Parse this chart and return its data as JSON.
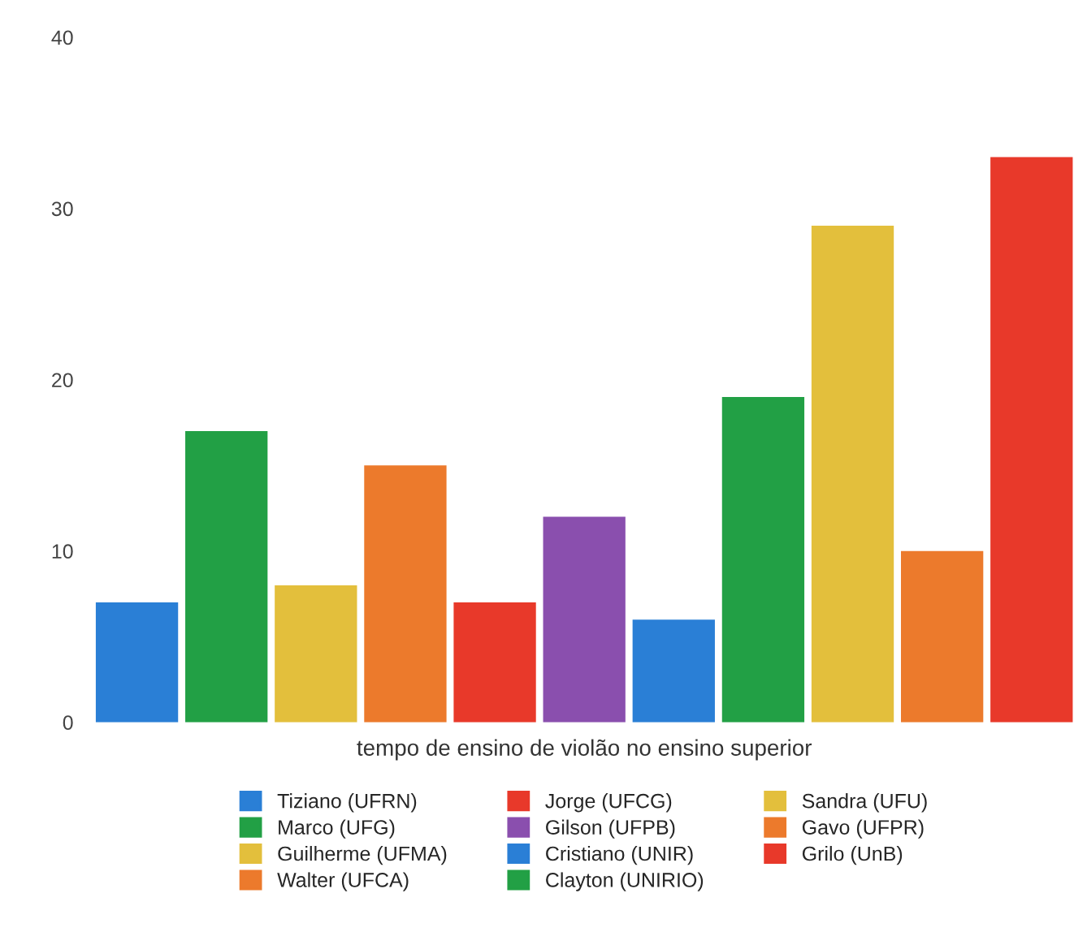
{
  "chart_data": {
    "type": "bar",
    "xlabel": "tempo de ensino de violão no ensino superior",
    "categories": [
      null
    ],
    "series": [
      {
        "name": "Tiziano (UFRN)",
        "color": "#2a7fd6",
        "values": [
          7
        ]
      },
      {
        "name": "Marco (UFG)",
        "color": "#22a045",
        "values": [
          17
        ]
      },
      {
        "name": "Guilherme (UFMA)",
        "color": "#e3bf3c",
        "values": [
          8
        ]
      },
      {
        "name": "Walter (UFCA)",
        "color": "#ec7a2c",
        "values": [
          15
        ]
      },
      {
        "name": "Jorge (UFCG)",
        "color": "#e8392a",
        "values": [
          7
        ]
      },
      {
        "name": "Gilson (UFPB)",
        "color": "#8a4fae",
        "values": [
          12
        ]
      },
      {
        "name": "Cristiano (UNIR)",
        "color": "#2a7fd6",
        "values": [
          6
        ]
      },
      {
        "name": "Clayton (UNIRIO)",
        "color": "#22a045",
        "values": [
          19
        ]
      },
      {
        "name": "Sandra (UFU)",
        "color": "#e3bf3c",
        "values": [
          29
        ]
      },
      {
        "name": "Gavo (UFPR)",
        "color": "#ec7a2c",
        "values": [
          10
        ]
      },
      {
        "name": "Grilo (UnB)",
        "color": "#e8392a",
        "values": [
          33
        ]
      }
    ],
    "ylim": [
      0,
      40
    ],
    "yticks": [
      0,
      10,
      20,
      30,
      40
    ],
    "grid": false,
    "legend": "bottom"
  }
}
